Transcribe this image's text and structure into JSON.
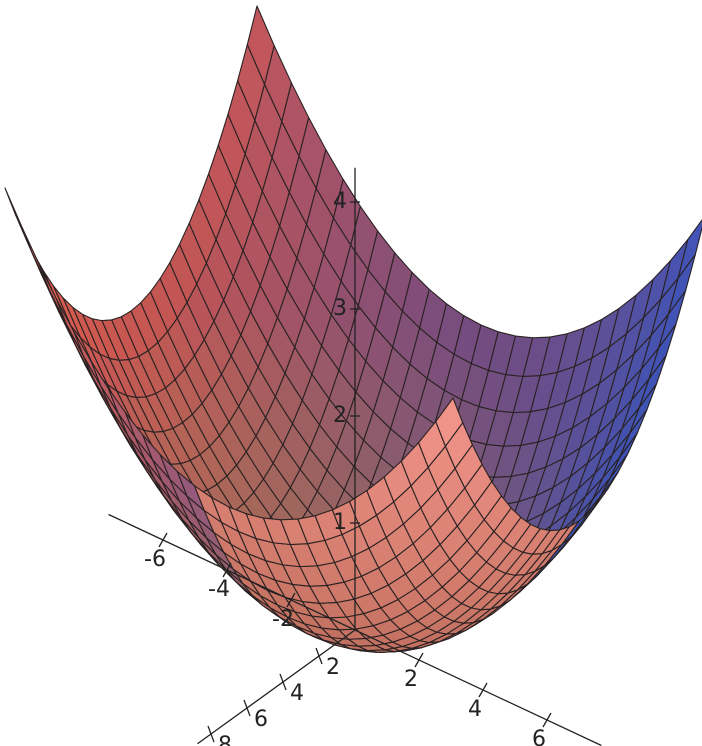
{
  "chart_data": {
    "type": "surface",
    "xlim": [
      -7,
      7
    ],
    "ylim": [
      -7,
      7
    ],
    "zlim": [
      0,
      4
    ],
    "xticks": [
      2,
      4,
      6,
      8
    ],
    "yticks": [
      -6,
      -4,
      -2,
      2,
      4,
      6
    ],
    "zticks": [
      1,
      2,
      3,
      4
    ],
    "mesh": true
  }
}
